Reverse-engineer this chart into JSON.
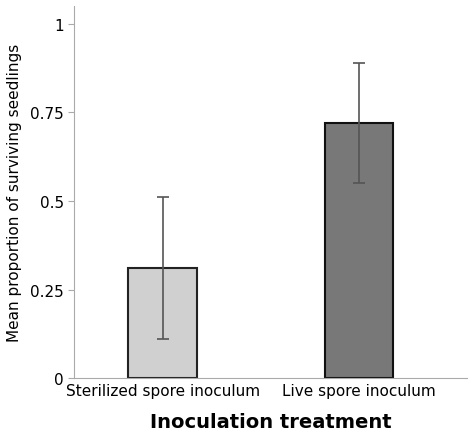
{
  "categories": [
    "Sterilized spore inoculum",
    "Live spore inoculum"
  ],
  "values": [
    0.31,
    0.72
  ],
  "errors_upper": [
    0.2,
    0.17
  ],
  "errors_lower": [
    0.2,
    0.17
  ],
  "bar_colors": [
    "#d0d0d0",
    "#787878"
  ],
  "bar_edgecolors": [
    "#222222",
    "#111111"
  ],
  "xlabel": "Inoculation treatment",
  "ylabel": "Mean proportion of surviving seedlings",
  "ylim": [
    0,
    1.05
  ],
  "yticks": [
    0,
    0.25,
    0.5,
    0.75,
    1
  ],
  "ytick_labels": [
    "0",
    "0.25",
    "0.5",
    "0.75",
    "1"
  ],
  "bar_width": 0.35,
  "xlabel_fontsize": 14,
  "ylabel_fontsize": 11,
  "tick_fontsize": 11,
  "xtick_fontsize": 11,
  "background_color": "#ffffff",
  "error_capsize": 4,
  "error_linewidth": 1.2,
  "error_color": "#555555",
  "xlabel_bold": true
}
